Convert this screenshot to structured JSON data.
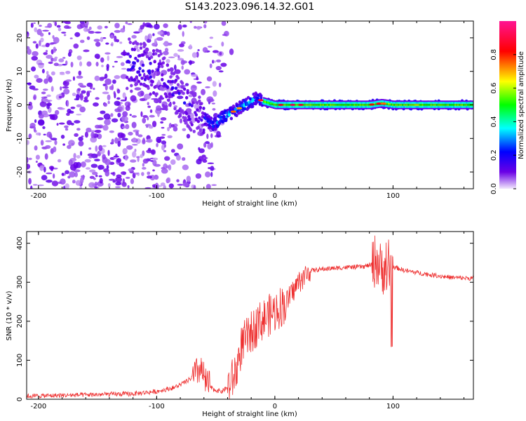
{
  "title": "S143.2023.096.14.32.G01",
  "colors": {
    "snr_line": "#ee3030",
    "axis": "#000000",
    "background": "#ffffff"
  },
  "chart_data": [
    {
      "type": "heatmap",
      "title": "S143.2023.096.14.32.G01",
      "xlabel": "Height of straight line (km)",
      "ylabel": "Frequency (Hz)",
      "xlim": [
        -210,
        168
      ],
      "ylim": [
        -25,
        25
      ],
      "xticks": [
        -200,
        -100,
        0,
        100
      ],
      "yticks": [
        -20,
        -10,
        0,
        10,
        20
      ],
      "colorbar": {
        "label": "Normalized spectral amplitude",
        "range": [
          0.0,
          1.0
        ],
        "ticks": [
          0.0,
          0.2,
          0.4,
          0.6,
          0.8
        ],
        "colormap": [
          "#f2e8fc",
          "#6a00e6",
          "#0000ff",
          "#00ffff",
          "#00ff00",
          "#ffff00",
          "#ff0000",
          "#ff1493"
        ]
      },
      "trace": {
        "description_points_x": [
          -120,
          -100,
          -90,
          -80,
          -70,
          -60,
          -52,
          -45,
          -35,
          -25,
          -15,
          -10,
          0,
          20,
          50,
          80,
          90,
          100,
          168
        ],
        "description_points_y": [
          12,
          9,
          6,
          2,
          -2,
          -4,
          -6,
          -4,
          -2,
          0,
          2,
          1,
          0,
          0,
          0,
          0,
          0.5,
          0,
          0
        ],
        "background_noise_region_x": [
          -210,
          -60
        ],
        "steady_band_region_x": [
          -10,
          168
        ],
        "steady_band_amplitude": 0.45,
        "peak_amplitude": 0.9
      }
    },
    {
      "type": "line",
      "xlabel": "Height of straight line (km)",
      "ylabel": "SNR (10 * v/v)",
      "xlim": [
        -210,
        168
      ],
      "ylim": [
        0,
        430
      ],
      "xticks": [
        -200,
        -100,
        0,
        100
      ],
      "yticks": [
        0,
        100,
        200,
        300,
        400
      ],
      "series": [
        {
          "x": [
            -210,
            -180,
            -150,
            -120,
            -100,
            -85,
            -75,
            -68,
            -63,
            -58,
            -52,
            -45,
            -38,
            -32,
            -28,
            -20,
            -12,
            -5,
            0,
            10,
            20,
            30,
            45,
            60,
            75,
            82,
            86,
            90,
            95,
            100,
            110,
            130,
            150,
            168
          ],
          "y": [
            8,
            10,
            12,
            14,
            20,
            30,
            45,
            60,
            80,
            40,
            25,
            20,
            35,
            80,
            140,
            170,
            200,
            215,
            225,
            250,
            300,
            330,
            335,
            338,
            340,
            345,
            360,
            330,
            350,
            340,
            330,
            320,
            312,
            310
          ]
        }
      ]
    }
  ]
}
